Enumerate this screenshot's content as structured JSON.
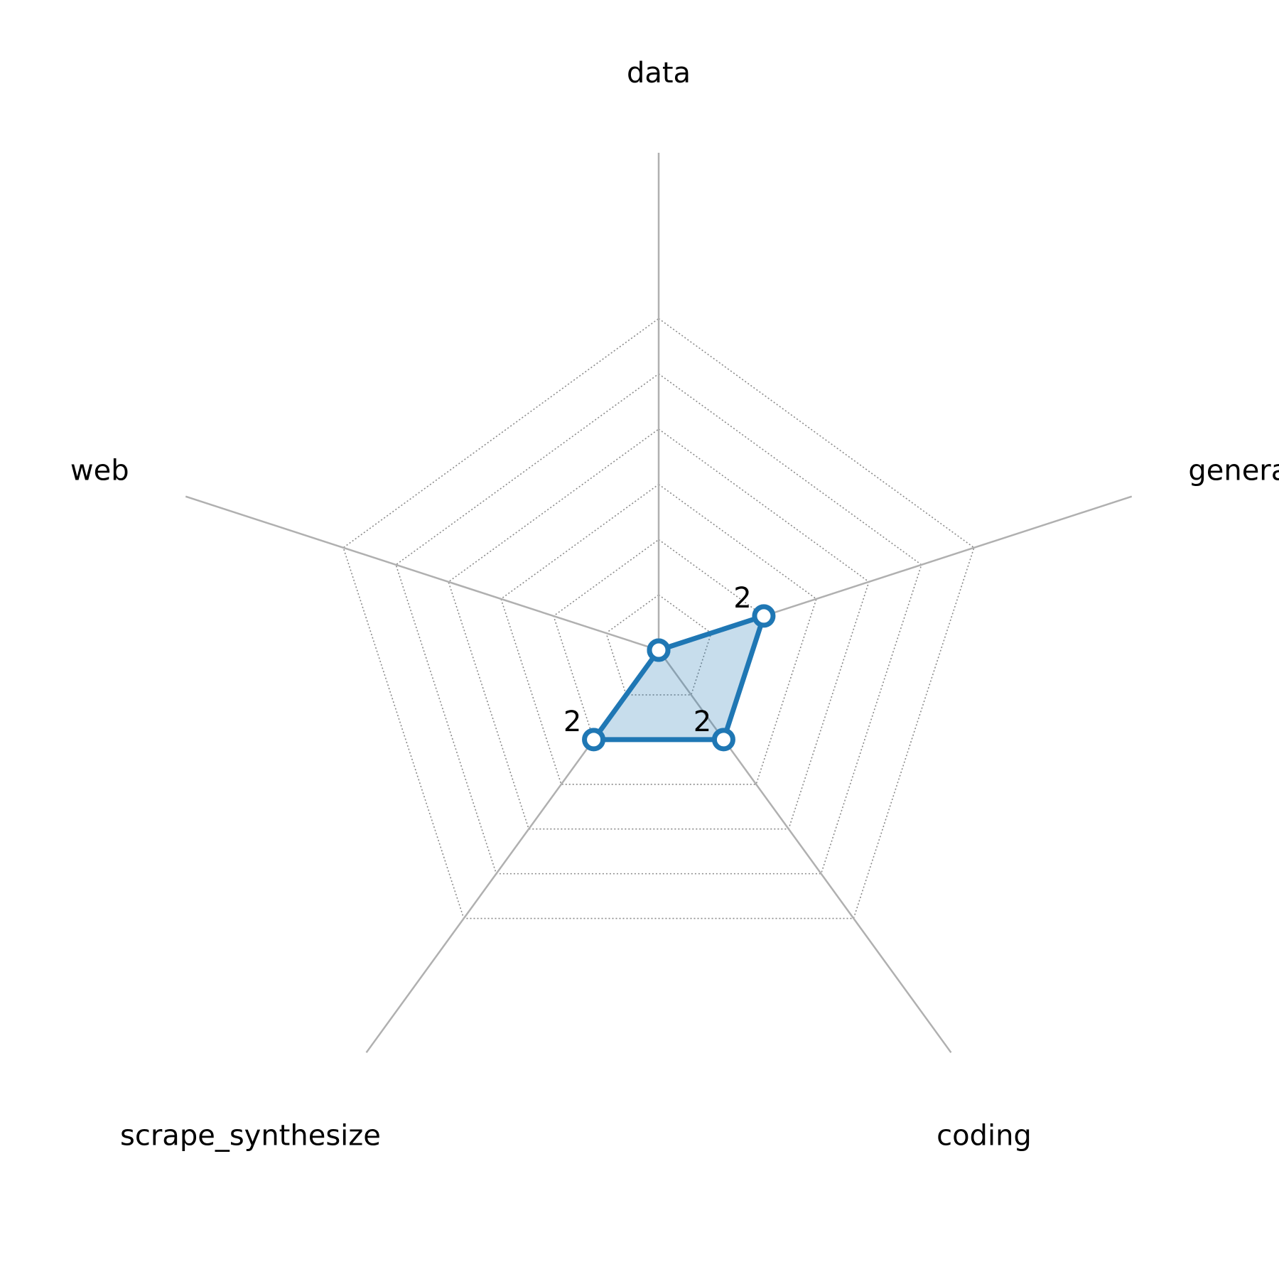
{
  "chart_data": {
    "type": "radar",
    "axes": [
      "data",
      "general",
      "coding",
      "scrape_synthesize",
      "web"
    ],
    "rlim": [
      0,
      9
    ],
    "ring_values": [
      1,
      2,
      3,
      4,
      5,
      6
    ],
    "series": [
      {
        "values": [
          0,
          2,
          2,
          2,
          0
        ],
        "value_labels": [
          "",
          "2",
          "2",
          "2",
          ""
        ],
        "color": "#1f77b4",
        "fill_color": "#1f77b4",
        "fill_opacity": 0.25
      }
    ],
    "grid": true,
    "legend": false
  }
}
